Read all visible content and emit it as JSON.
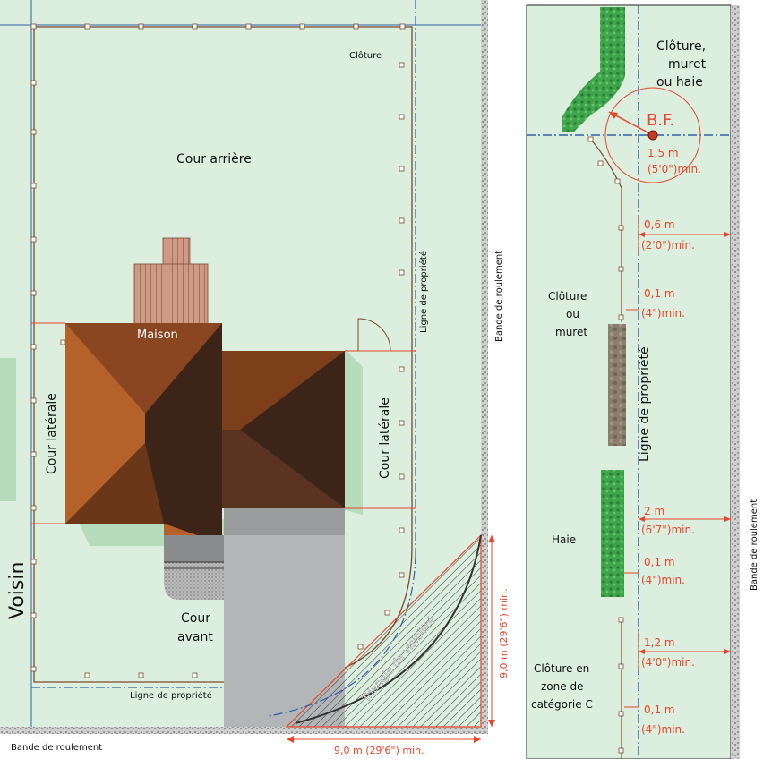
{
  "left": {
    "cloture": "Clôture",
    "cour_arriere": "Cour arrière",
    "maison": "Maison",
    "cour_laterale_left": "Cour latérale",
    "cour_laterale_right": "Cour latérale",
    "cour_avant_1": "Cour",
    "cour_avant_2": "avant",
    "voisin": "Voisin",
    "ligne_propriete_bottom": "Ligne de propriété",
    "ligne_propriete_right": "Ligne de propriété",
    "bande_roulement_bottom": "Bande de roulement",
    "bande_roulement_right": "Bande de roulement",
    "triangle": "Triangle de visibilité",
    "dim_horizontal": "9,0 m (29'6\") min.",
    "dim_vertical": "9,0 m (29'6\") min."
  },
  "right": {
    "cloture_muret_haie_1": "Clôture,",
    "cloture_muret_haie_2": "muret",
    "cloture_muret_haie_3": "ou haie",
    "bf": "B.F.",
    "bf_dist_1": "1,5 m",
    "bf_dist_2": "(5'0\")min.",
    "d1_m": "0,6 m",
    "d1_ft": "(2'0\")min.",
    "d2_m": "0,1 m",
    "d2_ft": "(4\")min.",
    "cloture_muret_1": "Clôture",
    "cloture_muret_2": "ou",
    "cloture_muret_3": "muret",
    "ligne_propriete": "Ligne de propriété",
    "haie": "Haie",
    "d3_m": "2 m",
    "d3_ft": "(6'7\")min.",
    "d4_m": "0,1 m",
    "d4_ft": "(4\")min.",
    "d5_m": "1,2 m",
    "d5_ft": "(4'0\")min.",
    "zone_c_1": "Clôture en",
    "zone_c_2": "zone de",
    "zone_c_3": "catégorie C",
    "d6_m": "0,1 m",
    "d6_ft": "(4\")min.",
    "bande_roulement": "Bande de roulement"
  }
}
